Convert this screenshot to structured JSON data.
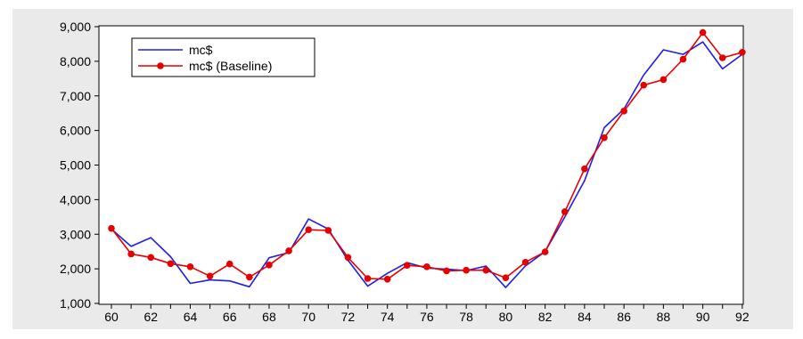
{
  "chart_data": {
    "type": "line",
    "x": [
      "60",
      "61",
      "62",
      "63",
      "64",
      "65",
      "66",
      "67",
      "68",
      "69",
      "70",
      "71",
      "72",
      "73",
      "74",
      "75",
      "76",
      "77",
      "78",
      "79",
      "80",
      "81",
      "82",
      "83",
      "84",
      "85",
      "86",
      "87",
      "88",
      "89",
      "90",
      "91",
      "92"
    ],
    "x_tick_labels": [
      "60",
      "62",
      "64",
      "66",
      "68",
      "70",
      "72",
      "74",
      "76",
      "78",
      "80",
      "82",
      "84",
      "86",
      "88",
      "90",
      "92"
    ],
    "y_tick_labels": [
      "1,000",
      "2,000",
      "3,000",
      "4,000",
      "5,000",
      "6,000",
      "7,000",
      "8,000",
      "9,000"
    ],
    "ylim": [
      1000,
      9000
    ],
    "grid": false,
    "legend_position": "top-left",
    "series": [
      {
        "name": "mc$",
        "color": "#1f1fe0",
        "markers": false,
        "values": [
          3150,
          2650,
          2900,
          2350,
          1580,
          1680,
          1650,
          1480,
          2320,
          2470,
          3440,
          3150,
          2250,
          1500,
          1870,
          2180,
          2020,
          1990,
          1950,
          2080,
          1460,
          2080,
          2500,
          3500,
          4550,
          6080,
          6620,
          7600,
          8330,
          8200,
          8560,
          7780,
          8200
        ]
      },
      {
        "name": "mc$ (Baseline)",
        "color": "#e60000",
        "markers": true,
        "values": [
          3170,
          2430,
          2330,
          2150,
          2060,
          1790,
          2140,
          1760,
          2110,
          2520,
          3130,
          3110,
          2330,
          1720,
          1700,
          2100,
          2060,
          1940,
          1960,
          1960,
          1740,
          2190,
          2490,
          3650,
          4890,
          5790,
          6560,
          7310,
          7470,
          8060,
          8830,
          8100,
          8260
        ]
      }
    ]
  }
}
